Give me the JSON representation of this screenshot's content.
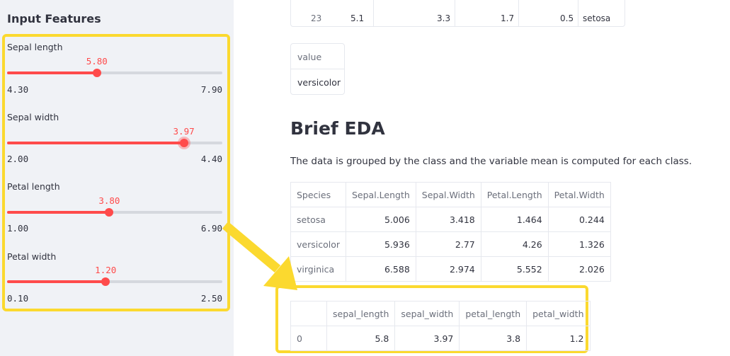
{
  "sidebar": {
    "title": "Input Features",
    "sliders": [
      {
        "label": "Sepal length",
        "value": "5.80",
        "min": "4.30",
        "max": "7.90",
        "fraction": 0.417,
        "active": false
      },
      {
        "label": "Sepal width",
        "value": "3.97",
        "min": "2.00",
        "max": "4.40",
        "fraction": 0.821,
        "active": true
      },
      {
        "label": "Petal length",
        "value": "3.80",
        "min": "1.00",
        "max": "6.90",
        "fraction": 0.475,
        "active": false
      },
      {
        "label": "Petal width",
        "value": "1.20",
        "min": "0.10",
        "max": "2.50",
        "fraction": 0.458,
        "active": false
      }
    ]
  },
  "top_table": {
    "row_index": "23",
    "cells": [
      "5.1",
      "3.3",
      "1.7",
      "0.5",
      "setosa"
    ]
  },
  "prediction": {
    "header": "value",
    "value": "versicolor"
  },
  "eda": {
    "heading": "Brief EDA",
    "description": "The data is grouped by the class and the variable mean is computed for each class.",
    "columns": [
      "Species",
      "Sepal.Length",
      "Sepal.Width",
      "Petal.Length",
      "Petal.Width"
    ],
    "rows": [
      [
        "setosa",
        "5.006",
        "3.418",
        "1.464",
        "0.244"
      ],
      [
        "versicolor",
        "5.936",
        "2.77",
        "4.26",
        "1.326"
      ],
      [
        "virginica",
        "6.588",
        "2.974",
        "5.552",
        "2.026"
      ]
    ]
  },
  "input_df": {
    "columns": [
      "",
      "sepal_length",
      "sepal_width",
      "petal_length",
      "petal_width"
    ],
    "rows": [
      [
        "0",
        "5.8",
        "3.97",
        "3.8",
        "1.2"
      ]
    ]
  },
  "colors": {
    "accent": "#ff4b4b",
    "highlight": "#fbd92f",
    "sidebar_bg": "#f0f2f6"
  }
}
